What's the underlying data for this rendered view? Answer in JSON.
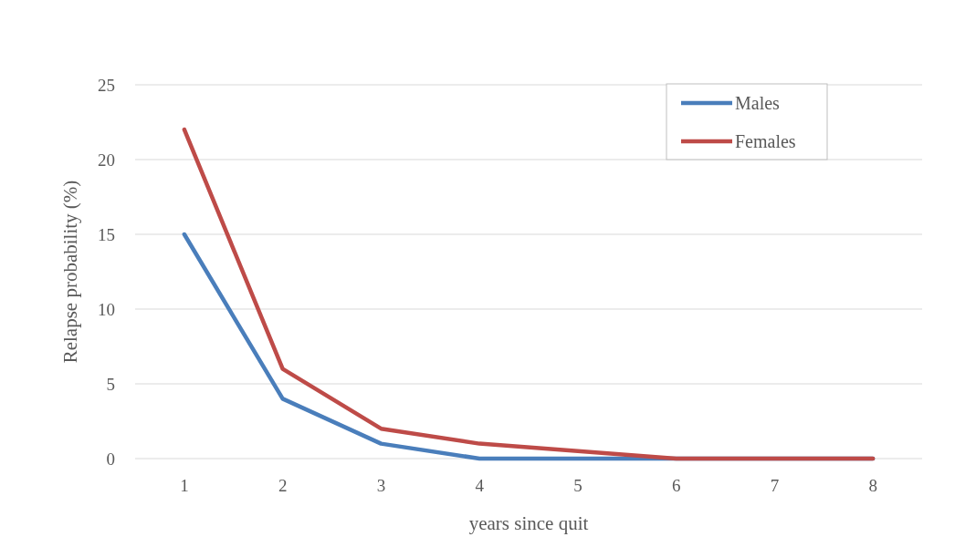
{
  "chart_data": {
    "type": "line",
    "xlabel": "years since quit",
    "ylabel": "Relapse probability (%)",
    "categories": [
      "1",
      "2",
      "3",
      "4",
      "5",
      "6",
      "7",
      "8"
    ],
    "series": [
      {
        "name": "Males",
        "color": "#4a7ebb",
        "values": [
          15,
          4,
          1,
          0,
          0,
          0,
          0,
          0
        ]
      },
      {
        "name": "Females",
        "color": "#be4b48",
        "values": [
          22,
          6,
          2,
          1,
          0.5,
          0,
          0,
          0
        ]
      }
    ],
    "ylim": [
      0,
      25
    ],
    "yticks": [
      0,
      5,
      10,
      15,
      20,
      25
    ],
    "grid": "y",
    "legend": "top right",
    "marker": "none",
    "line_style": "solid"
  }
}
